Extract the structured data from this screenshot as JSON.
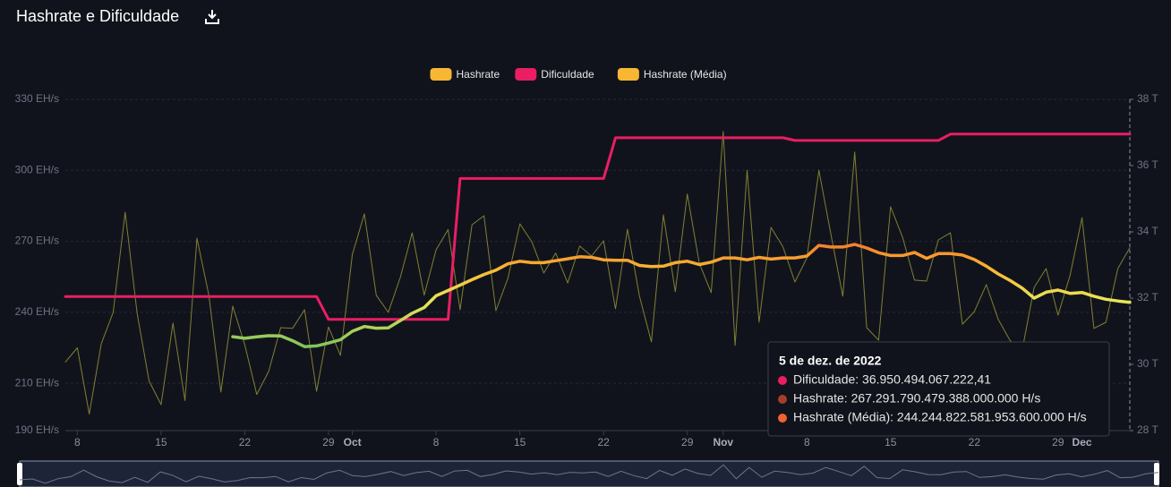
{
  "chart_data": {
    "type": "line",
    "title": "Hashrate e Dificuldade",
    "x": [
      "2022-09-07",
      "2022-09-08",
      "2022-09-09",
      "2022-09-10",
      "2022-09-11",
      "2022-09-12",
      "2022-09-13",
      "2022-09-14",
      "2022-09-15",
      "2022-09-16",
      "2022-09-17",
      "2022-09-18",
      "2022-09-19",
      "2022-09-20",
      "2022-09-21",
      "2022-09-22",
      "2022-09-23",
      "2022-09-24",
      "2022-09-25",
      "2022-09-26",
      "2022-09-27",
      "2022-09-28",
      "2022-09-29",
      "2022-09-30",
      "2022-10-01",
      "2022-10-02",
      "2022-10-03",
      "2022-10-04",
      "2022-10-05",
      "2022-10-06",
      "2022-10-07",
      "2022-10-08",
      "2022-10-09",
      "2022-10-10",
      "2022-10-11",
      "2022-10-12",
      "2022-10-13",
      "2022-10-14",
      "2022-10-15",
      "2022-10-16",
      "2022-10-17",
      "2022-10-18",
      "2022-10-19",
      "2022-10-20",
      "2022-10-21",
      "2022-10-22",
      "2022-10-23",
      "2022-10-24",
      "2022-10-25",
      "2022-10-26",
      "2022-10-27",
      "2022-10-28",
      "2022-10-29",
      "2022-10-30",
      "2022-10-31",
      "2022-11-01",
      "2022-11-02",
      "2022-11-03",
      "2022-11-04",
      "2022-11-05",
      "2022-11-06",
      "2022-11-07",
      "2022-11-08",
      "2022-11-09",
      "2022-11-10",
      "2022-11-11",
      "2022-11-12",
      "2022-11-13",
      "2022-11-14",
      "2022-11-15",
      "2022-11-16",
      "2022-11-17",
      "2022-11-18",
      "2022-11-19",
      "2022-11-20",
      "2022-11-21",
      "2022-11-22",
      "2022-11-23",
      "2022-11-24",
      "2022-11-25",
      "2022-11-26",
      "2022-11-27",
      "2022-11-28",
      "2022-11-29",
      "2022-11-30",
      "2022-12-01",
      "2022-12-02",
      "2022-12-03",
      "2022-12-04",
      "2022-12-05"
    ],
    "xticks": [
      {
        "value": "2022-09-08",
        "label": "8"
      },
      {
        "value": "2022-09-15",
        "label": "15"
      },
      {
        "value": "2022-09-22",
        "label": "22"
      },
      {
        "value": "2022-09-29",
        "label": "29"
      },
      {
        "value": "2022-10-01",
        "label": "Oct"
      },
      {
        "value": "2022-10-08",
        "label": "8"
      },
      {
        "value": "2022-10-15",
        "label": "15"
      },
      {
        "value": "2022-10-22",
        "label": "22"
      },
      {
        "value": "2022-10-29",
        "label": "29"
      },
      {
        "value": "2022-11-01",
        "label": "Nov"
      },
      {
        "value": "2022-11-08",
        "label": "8"
      },
      {
        "value": "2022-11-15",
        "label": "15"
      },
      {
        "value": "2022-11-22",
        "label": "22"
      },
      {
        "value": "2022-11-29",
        "label": "29"
      },
      {
        "value": "2022-12-01",
        "label": "Dec"
      }
    ],
    "ylim": [
      190,
      330
    ],
    "yticks": [
      {
        "value": 190,
        "label": "190 EH/s"
      },
      {
        "value": 210,
        "label": "210 EH/s"
      },
      {
        "value": 240,
        "label": "240 EH/s"
      },
      {
        "value": 270,
        "label": "270 EH/s"
      },
      {
        "value": 300,
        "label": "300 EH/s"
      },
      {
        "value": 330,
        "label": "330 EH/s"
      }
    ],
    "y2lim": [
      28,
      38
    ],
    "y2ticks": [
      {
        "value": 28,
        "label": "28 T"
      },
      {
        "value": 30,
        "label": "30 T"
      },
      {
        "value": 32,
        "label": "32 T"
      },
      {
        "value": 34,
        "label": "34 T"
      },
      {
        "value": 36,
        "label": "36 T"
      },
      {
        "value": 38,
        "label": "38 T"
      }
    ],
    "grid": true,
    "series": [
      {
        "name": "Hashrate",
        "color": "#f7b733",
        "values": [
          219,
          225,
          197,
          226.7,
          240,
          282.3,
          239.5,
          211,
          201,
          235.4,
          202.7,
          271.3,
          247.2,
          206.3,
          242.6,
          226.3,
          205.3,
          215,
          233.5,
          233.2,
          241.1,
          206.6,
          233.8,
          221.8,
          264.5,
          281.6,
          247.2,
          240,
          254.7,
          273.6,
          247.2,
          266.4,
          275,
          241.1,
          277,
          280.8,
          240.7,
          254.3,
          277.4,
          269.8,
          256.6,
          265,
          252.4,
          268,
          263.8,
          270.2,
          241.5,
          275.1,
          246.8,
          227.5,
          281.2,
          248.7,
          290,
          260.8,
          248.3,
          316.4,
          226,
          300,
          235.8,
          275.9,
          267.6,
          252.8,
          263,
          300,
          273.2,
          246.8,
          307.7,
          233.5,
          228.2,
          284.6,
          271.7,
          253.6,
          253.2,
          270.6,
          273.6,
          235,
          240.3,
          251.7,
          237,
          228,
          224,
          250.5,
          258.5,
          238.8,
          255.5,
          280,
          233.2,
          235.8,
          258.5,
          267.29
        ]
      },
      {
        "name": "Dificuldade",
        "color": "#e91e63",
        "axis": "y2",
        "values": [
          32.05,
          32.05,
          32.05,
          32.05,
          32.05,
          32.05,
          32.05,
          32.05,
          32.05,
          32.05,
          32.05,
          32.05,
          32.05,
          32.05,
          32.05,
          32.05,
          32.05,
          32.05,
          32.05,
          32.05,
          32.05,
          32.05,
          31.36,
          31.36,
          31.36,
          31.36,
          31.36,
          31.36,
          31.36,
          31.36,
          31.36,
          31.36,
          31.36,
          35.61,
          35.61,
          35.61,
          35.61,
          35.61,
          35.61,
          35.61,
          35.61,
          35.61,
          35.61,
          35.61,
          35.61,
          35.61,
          36.84,
          36.84,
          36.84,
          36.84,
          36.84,
          36.84,
          36.84,
          36.84,
          36.84,
          36.84,
          36.84,
          36.84,
          36.84,
          36.84,
          36.84,
          36.76,
          36.76,
          36.76,
          36.76,
          36.76,
          36.76,
          36.76,
          36.76,
          36.76,
          36.76,
          36.76,
          36.76,
          36.76,
          36.95,
          36.95,
          36.95,
          36.95,
          36.95,
          36.95,
          36.95,
          36.95,
          36.95,
          36.95,
          36.95,
          36.95,
          36.95,
          36.95,
          36.95,
          36.95
        ]
      },
      {
        "name": "Hashrate (Média)",
        "color": "#f7b733",
        "values": [
          null,
          null,
          null,
          null,
          null,
          null,
          null,
          null,
          null,
          null,
          null,
          null,
          null,
          null,
          229.7,
          229.0,
          229.6,
          230.1,
          230.0,
          228.0,
          225.5,
          225.8,
          227.0,
          228.4,
          232.0,
          234.0,
          233.3,
          233.4,
          236.5,
          239.6,
          242.0,
          247.0,
          249.2,
          251.5,
          253.8,
          256.0,
          257.8,
          260.5,
          261.6,
          261.0,
          261.0,
          261.8,
          262.6,
          263.5,
          263.2,
          262.2,
          262.0,
          262.0,
          259.8,
          259.3,
          259.5,
          261.0,
          261.6,
          260.2,
          261.2,
          263.0,
          263.0,
          262.2,
          263.2,
          262.5,
          263.0,
          263.0,
          263.8,
          268.3,
          267.6,
          267.6,
          268.7,
          267.2,
          265.2,
          264.0,
          264.0,
          265.3,
          262.8,
          264.8,
          264.8,
          264.2,
          262.3,
          259.5,
          256.2,
          253.4,
          250.2,
          246.0,
          248.5,
          249.4,
          248.0,
          248.4,
          246.8,
          245.5,
          244.8,
          244.24
        ]
      }
    ]
  },
  "tooltip": {
    "title": "5 de dez. de 2022",
    "items": [
      "Dificuldade: 36.950.494.067.222,41",
      "Hashrate: 267.291.790.479.388.000.000 H/s",
      "Hashrate (Média): 244.244.822.581.953.600.000 H/s"
    ]
  }
}
